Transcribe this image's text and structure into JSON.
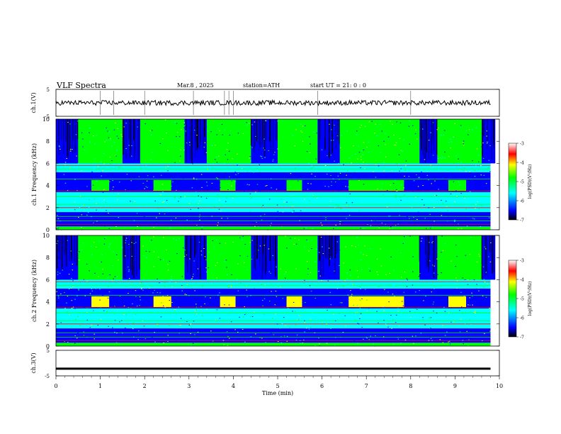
{
  "header": {
    "title": "VLF  Spectra",
    "date": "Mar.8  , 2025",
    "station": "station=ATH",
    "start": "start  UT  =   21: 0  : 0"
  },
  "chart_data": [
    {
      "type": "line",
      "ylabel": "ch.1(V)",
      "ylim": [
        -5,
        5
      ],
      "yticks": [
        "5",
        "-5"
      ],
      "series": [
        {
          "x_range_min": [
            0,
            9.8
          ],
          "level_v": 0,
          "note_spikes_min": [
            1.0,
            1.3,
            2.0,
            3.1,
            3.8,
            3.9,
            4.0,
            5.9,
            8.0
          ]
        }
      ]
    },
    {
      "type": "heatmap",
      "ylabel": "ch.1  Frequency  (kHz)",
      "ylim": [
        0,
        10
      ],
      "yticks": [
        "10",
        "8",
        "6",
        "4",
        "2",
        "0"
      ],
      "colorbar": {
        "label": "log(PSD)(V²/Hz)",
        "range": [
          -7,
          -3
        ],
        "ticks": [
          "-3",
          "-4",
          "-5",
          "-6",
          "-7"
        ]
      },
      "bursts_min": [
        [
          0.8,
          1.2
        ],
        [
          2.2,
          2.6
        ],
        [
          3.7,
          4.05
        ],
        [
          5.2,
          5.55
        ],
        [
          6.6,
          7.85
        ],
        [
          8.85,
          9.25
        ]
      ]
    },
    {
      "type": "heatmap",
      "ylabel": "ch.2  Frequency  (kHz)",
      "ylim": [
        0,
        10
      ],
      "yticks": [
        "10",
        "8",
        "6",
        "4",
        "2",
        "0"
      ],
      "colorbar": {
        "label": "log(PSD)(V²/Hz)",
        "range": [
          -7,
          -3
        ],
        "ticks": [
          "-3",
          "-4",
          "-5",
          "-6",
          "-7"
        ]
      },
      "bursts_min": [
        [
          0.8,
          1.2
        ],
        [
          2.2,
          2.6
        ],
        [
          3.7,
          4.05
        ],
        [
          5.2,
          5.55
        ],
        [
          6.6,
          7.85
        ],
        [
          8.85,
          9.25
        ]
      ]
    },
    {
      "type": "line",
      "ylabel": "ch.3(V)",
      "ylim": [
        -5,
        5
      ],
      "yticks": [
        "5",
        "-5"
      ],
      "series": [
        {
          "x_range_min": [
            0,
            9.8
          ],
          "level_v": -2.2
        }
      ]
    }
  ],
  "xaxis": {
    "label": "Time  (min)",
    "range": [
      0,
      10
    ],
    "ticks": [
      "0",
      "1",
      "2",
      "3",
      "4",
      "5",
      "6",
      "7",
      "8",
      "9",
      "10"
    ]
  },
  "colors": {
    "colormap": [
      "#000000",
      "#0000ff",
      "#00ffff",
      "#00ff00",
      "#ffff00",
      "#ff0000",
      "#ffffff"
    ],
    "trace": "#000000"
  }
}
